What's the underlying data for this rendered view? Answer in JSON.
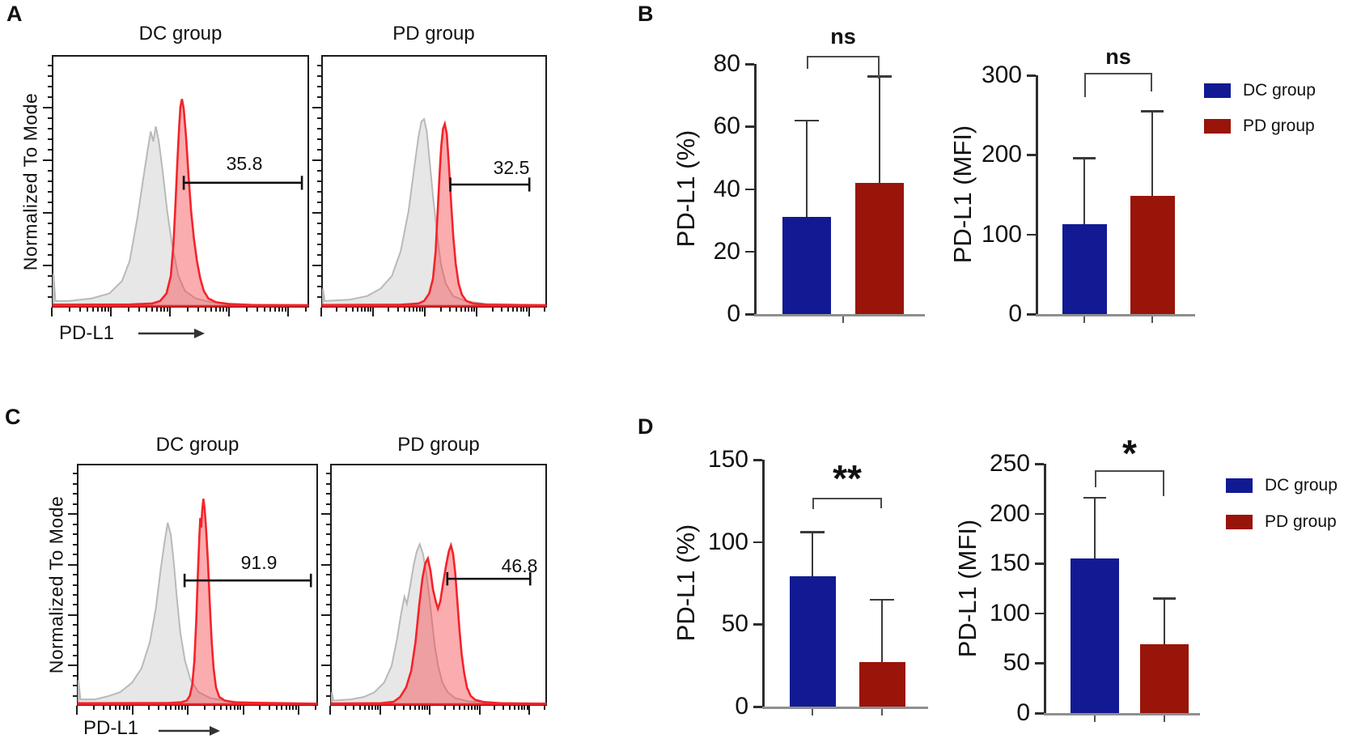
{
  "figure": {
    "panels": {
      "a": {
        "label": "A",
        "ylabel": "Normalized To Mode",
        "xlabel": "PD-L1",
        "plots": [
          {
            "title": "DC group",
            "gate_value": "35.8"
          },
          {
            "title": "PD group",
            "gate_value": "32.5"
          }
        ]
      },
      "b": {
        "label": "B"
      },
      "c": {
        "label": "C",
        "ylabel": "Normalized To Mode",
        "xlabel": "PD-L1",
        "plots": [
          {
            "title": "DC group",
            "gate_value": "91.9"
          },
          {
            "title": "PD group",
            "gate_value": "46.8"
          }
        ]
      },
      "d": {
        "label": "D"
      }
    },
    "legend": {
      "items": [
        {
          "label": "DC group",
          "color": "#111a93"
        },
        {
          "label": "PD group",
          "color": "#991409"
        }
      ]
    },
    "colors": {
      "bar_blue": "#111a93",
      "bar_red": "#991409",
      "hist_red_line": "#f4232a",
      "hist_red_fill": "rgba(244,70,75,0.45)",
      "hist_gray_line": "#b9b9b9",
      "hist_gray_fill": "rgba(120,120,120,0.18)",
      "ink": "#1a1a1a"
    }
  },
  "chart_data": [
    {
      "id": "a_dc",
      "panel": "A",
      "type": "flow-histogram",
      "title": "DC group",
      "xlabel": "PD-L1",
      "ylabel": "Normalized To Mode",
      "x_scale": "log",
      "gate_value_percent": 35.8,
      "series": [
        "control (gray filled)",
        "PD-L1 stained (red filled)"
      ]
    },
    {
      "id": "a_pd",
      "panel": "A",
      "type": "flow-histogram",
      "title": "PD group",
      "xlabel": "PD-L1",
      "ylabel": "Normalized To Mode",
      "x_scale": "log",
      "gate_value_percent": 32.5,
      "series": [
        "control (gray filled)",
        "PD-L1 stained (red filled)"
      ]
    },
    {
      "id": "b_pct",
      "panel": "B",
      "type": "bar",
      "ylabel": "PD-L1  (%)",
      "ylim": [
        0,
        80
      ],
      "yticks": [
        0,
        20,
        40,
        60,
        80
      ],
      "categories": [
        "DC group",
        "PD group"
      ],
      "values": [
        31,
        42
      ],
      "errors_up": [
        31,
        34
      ],
      "bar_colors": [
        "#111a93",
        "#991409"
      ],
      "significance": "ns",
      "grid": false,
      "legend_position": "right"
    },
    {
      "id": "b_mfi",
      "panel": "B",
      "type": "bar",
      "ylabel": "PD-L1 (MFI)",
      "ylim": [
        0,
        300
      ],
      "yticks": [
        0,
        100,
        200,
        300
      ],
      "categories": [
        "DC group",
        "PD group"
      ],
      "values": [
        113,
        148
      ],
      "errors_up": [
        83,
        107
      ],
      "bar_colors": [
        "#111a93",
        "#991409"
      ],
      "significance": "ns",
      "grid": false,
      "legend_position": "right"
    },
    {
      "id": "c_dc",
      "panel": "C",
      "type": "flow-histogram",
      "title": "DC group",
      "xlabel": "PD-L1",
      "ylabel": "Normalized To Mode",
      "x_scale": "log",
      "gate_value_percent": 91.9,
      "series": [
        "control (gray filled)",
        "PD-L1 stained (red filled)"
      ]
    },
    {
      "id": "c_pd",
      "panel": "C",
      "type": "flow-histogram",
      "title": "PD group",
      "xlabel": "PD-L1",
      "ylabel": "Normalized To Mode",
      "x_scale": "log",
      "gate_value_percent": 46.8,
      "series": [
        "control (gray filled)",
        "PD-L1 stained (red filled, bimodal)"
      ]
    },
    {
      "id": "d_pct",
      "panel": "D",
      "type": "bar",
      "ylabel": "PD-L1 (%)",
      "ylim": [
        0,
        150
      ],
      "yticks": [
        0,
        50,
        100,
        150
      ],
      "categories": [
        "DC group",
        "PD group"
      ],
      "values": [
        79,
        27
      ],
      "errors_up": [
        27,
        38
      ],
      "bar_colors": [
        "#111a93",
        "#991409"
      ],
      "significance": "**",
      "grid": false,
      "legend_position": "right"
    },
    {
      "id": "d_mfi",
      "panel": "D",
      "type": "bar",
      "ylabel": "PD-L1 (MFI)",
      "ylim": [
        0,
        250
      ],
      "yticks": [
        0,
        50,
        100,
        150,
        200,
        250
      ],
      "categories": [
        "DC group",
        "PD group"
      ],
      "values": [
        155,
        69
      ],
      "errors_up": [
        61,
        46
      ],
      "bar_colors": [
        "#111a93",
        "#991409"
      ],
      "significance": "*",
      "grid": false,
      "legend_position": "right"
    }
  ]
}
